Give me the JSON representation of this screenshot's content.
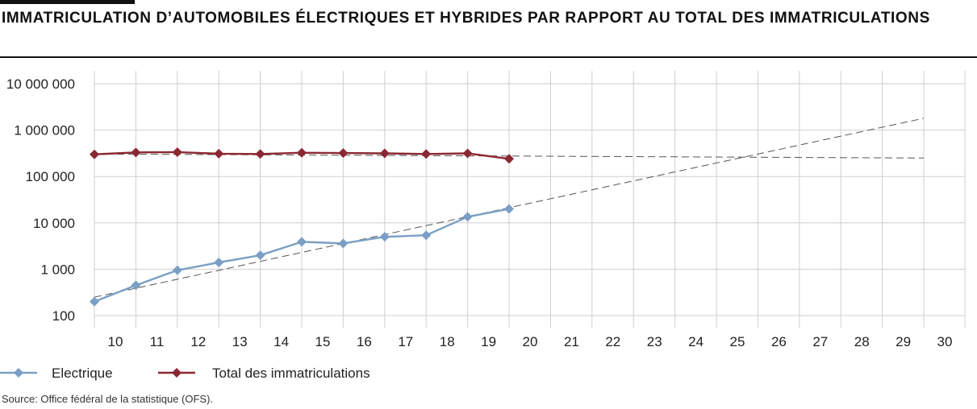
{
  "title": "Immatriculation d’automobiles électriques et hybrides par rapport au total des immatriculations",
  "source": "Source: Office fédéral de la statistique (OFS).",
  "colors": {
    "electrique": "#7b9fc4",
    "total": "#8b2732",
    "trend": "#555555",
    "grid": "#cfcfcf"
  },
  "chart_data": {
    "type": "line",
    "y_scale": "log",
    "ylim": [
      100,
      10000000
    ],
    "y_ticks": [
      100,
      1000,
      10000,
      100000,
      1000000,
      10000000
    ],
    "y_tick_labels": [
      "100",
      "1 000",
      "10 000",
      "100 000",
      "1 000 000",
      "10 000 000"
    ],
    "x_tick_labels": [
      "10",
      "11",
      "12",
      "13",
      "14",
      "15",
      "16",
      "17",
      "18",
      "19",
      "20",
      "21",
      "22",
      "23",
      "24",
      "25",
      "26",
      "27",
      "28",
      "29",
      "30"
    ],
    "grid": true,
    "legend_position": "bottom-left",
    "series": [
      {
        "name": "Electrique",
        "color_key": "electrique",
        "marker": "diamond",
        "x": [
          "10",
          "11",
          "12",
          "13",
          "14",
          "15",
          "16",
          "17",
          "18",
          "19",
          "20"
        ],
        "values": [
          200,
          450,
          950,
          1400,
          2000,
          3900,
          3600,
          5000,
          5400,
          13500,
          20000
        ]
      },
      {
        "name": "Total des immatriculations",
        "color_key": "total",
        "marker": "diamond",
        "x": [
          "10",
          "11",
          "12",
          "13",
          "14",
          "15",
          "16",
          "17",
          "18",
          "19",
          "20"
        ],
        "values": [
          300000,
          330000,
          335000,
          310000,
          305000,
          325000,
          320000,
          315000,
          305000,
          315000,
          240000
        ]
      }
    ],
    "trendlines": [
      {
        "color_key": "trend",
        "x": [
          "10",
          "30"
        ],
        "values": [
          250,
          1800000
        ]
      },
      {
        "color_key": "trend",
        "x": [
          "10",
          "30"
        ],
        "values": [
          305000,
          250000
        ]
      }
    ]
  }
}
